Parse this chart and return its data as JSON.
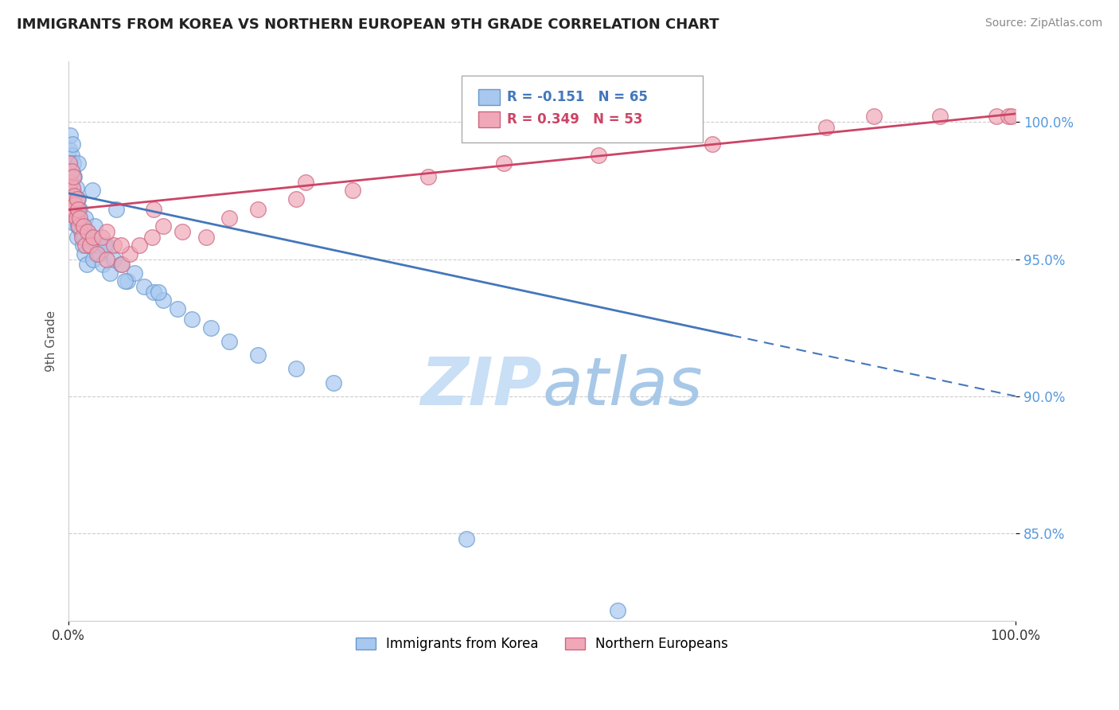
{
  "title": "IMMIGRANTS FROM KOREA VS NORTHERN EUROPEAN 9TH GRADE CORRELATION CHART",
  "source": "Source: ZipAtlas.com",
  "ylabel": "9th Grade",
  "xlim": [
    0.0,
    1.0
  ],
  "ylim": [
    0.818,
    1.022
  ],
  "yticks": [
    0.85,
    0.9,
    0.95,
    1.0
  ],
  "ytick_labels": [
    "85.0%",
    "90.0%",
    "95.0%",
    "100.0%"
  ],
  "r_korea": -0.151,
  "n_korea": 65,
  "r_northern": 0.349,
  "n_northern": 53,
  "color_korea_fill": "#a8c8f0",
  "color_korea_edge": "#6699cc",
  "color_northern_fill": "#f0a8b8",
  "color_northern_edge": "#cc6680",
  "color_korea_line": "#4477bb",
  "color_northern_line": "#cc4466",
  "watermark_color": "#ddeeff",
  "legend_korea": "Immigrants from Korea",
  "legend_northern": "Northern Europeans",
  "korea_x": [
    0.001,
    0.001,
    0.002,
    0.002,
    0.002,
    0.003,
    0.003,
    0.003,
    0.004,
    0.004,
    0.004,
    0.005,
    0.005,
    0.005,
    0.006,
    0.006,
    0.007,
    0.007,
    0.008,
    0.008,
    0.009,
    0.009,
    0.01,
    0.01,
    0.01,
    0.011,
    0.012,
    0.013,
    0.014,
    0.015,
    0.016,
    0.017,
    0.018,
    0.019,
    0.02,
    0.022,
    0.024,
    0.026,
    0.028,
    0.03,
    0.033,
    0.036,
    0.04,
    0.044,
    0.048,
    0.055,
    0.062,
    0.07,
    0.08,
    0.09,
    0.1,
    0.115,
    0.13,
    0.15,
    0.17,
    0.2,
    0.24,
    0.28,
    0.05,
    0.038,
    0.025,
    0.06,
    0.095,
    0.42,
    0.58
  ],
  "korea_y": [
    0.99,
    0.98,
    0.985,
    0.975,
    0.995,
    0.978,
    0.972,
    0.988,
    0.982,
    0.968,
    0.992,
    0.975,
    0.965,
    0.985,
    0.97,
    0.98,
    0.973,
    0.963,
    0.976,
    0.966,
    0.969,
    0.958,
    0.972,
    0.962,
    0.985,
    0.965,
    0.968,
    0.96,
    0.963,
    0.955,
    0.958,
    0.952,
    0.965,
    0.948,
    0.96,
    0.955,
    0.958,
    0.95,
    0.962,
    0.955,
    0.952,
    0.948,
    0.955,
    0.945,
    0.95,
    0.948,
    0.942,
    0.945,
    0.94,
    0.938,
    0.935,
    0.932,
    0.928,
    0.925,
    0.92,
    0.915,
    0.91,
    0.905,
    0.968,
    0.955,
    0.975,
    0.942,
    0.938,
    0.848,
    0.822
  ],
  "northern_x": [
    0.001,
    0.001,
    0.002,
    0.002,
    0.003,
    0.003,
    0.004,
    0.004,
    0.005,
    0.005,
    0.006,
    0.007,
    0.008,
    0.009,
    0.01,
    0.011,
    0.012,
    0.014,
    0.016,
    0.018,
    0.02,
    0.023,
    0.026,
    0.03,
    0.035,
    0.04,
    0.048,
    0.056,
    0.065,
    0.075,
    0.088,
    0.1,
    0.12,
    0.145,
    0.17,
    0.2,
    0.24,
    0.3,
    0.38,
    0.46,
    0.56,
    0.68,
    0.8,
    0.92,
    0.98,
    0.992,
    0.996,
    0.04,
    0.055,
    0.09,
    0.25,
    0.65,
    0.85
  ],
  "northern_y": [
    0.985,
    0.975,
    0.978,
    0.97,
    0.982,
    0.972,
    0.976,
    0.966,
    0.98,
    0.968,
    0.973,
    0.97,
    0.965,
    0.972,
    0.968,
    0.962,
    0.965,
    0.958,
    0.962,
    0.955,
    0.96,
    0.955,
    0.958,
    0.952,
    0.958,
    0.95,
    0.955,
    0.948,
    0.952,
    0.955,
    0.958,
    0.962,
    0.96,
    0.958,
    0.965,
    0.968,
    0.972,
    0.975,
    0.98,
    0.985,
    0.988,
    0.992,
    0.998,
    1.002,
    1.002,
    1.002,
    1.002,
    0.96,
    0.955,
    0.968,
    0.978,
    0.998,
    1.002
  ],
  "korea_line_x0": 0.0,
  "korea_line_x1": 1.0,
  "korea_line_y0": 0.974,
  "korea_line_y1": 0.9,
  "korea_line_solid_end": 0.7,
  "northern_line_x0": 0.0,
  "northern_line_x1": 1.0,
  "northern_line_y0": 0.968,
  "northern_line_y1": 1.003
}
